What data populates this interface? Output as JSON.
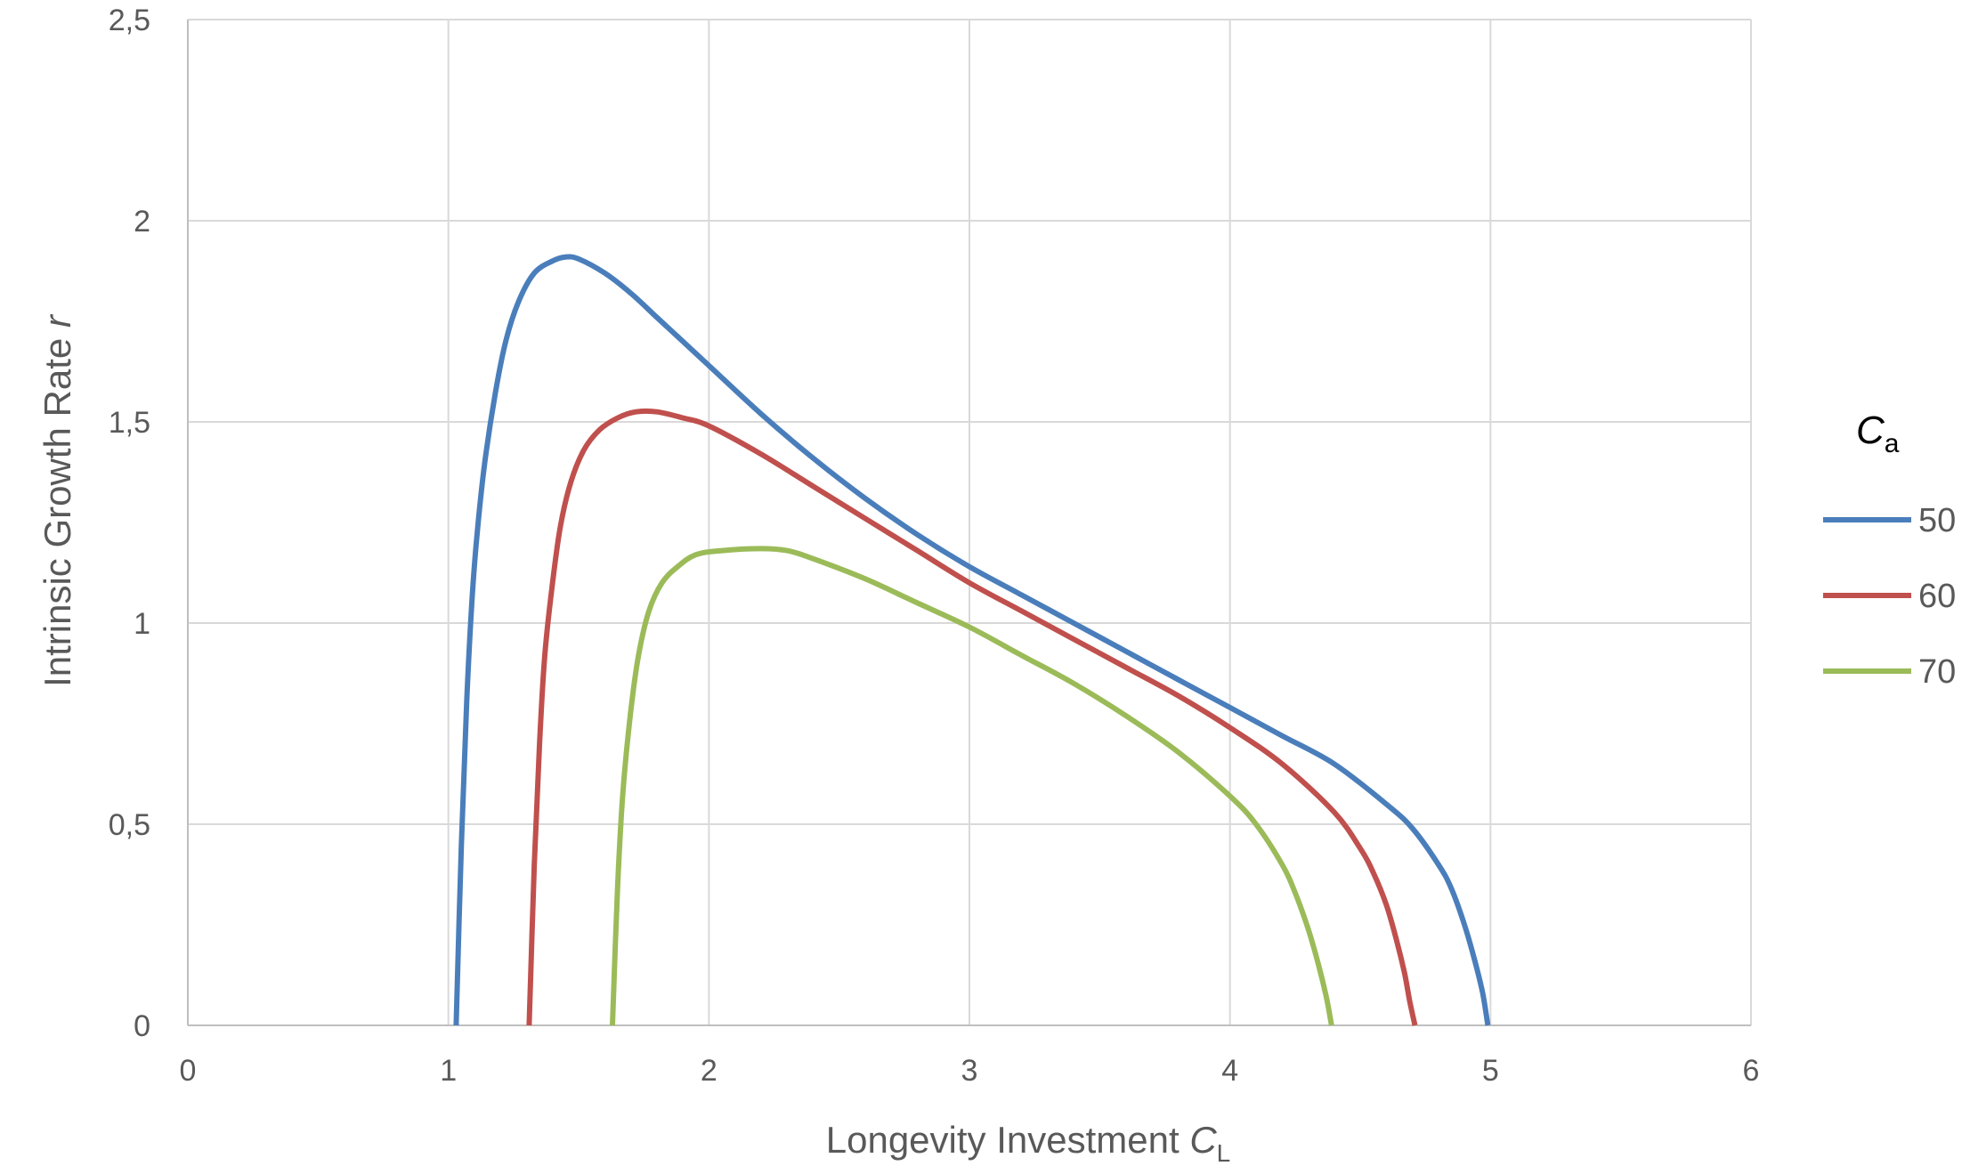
{
  "chart_data": {
    "type": "line",
    "xlabel_main": "Longevity Investment ",
    "xlabel_var": "C",
    "xlabel_sub": "L",
    "ylabel_main": "Intrinsic Growth Rate ",
    "ylabel_var": "r",
    "xlim": [
      0,
      6
    ],
    "ylim": [
      0,
      2.5
    ],
    "x_ticks": [
      0,
      1,
      2,
      3,
      4,
      5,
      6
    ],
    "y_ticks": [
      0,
      0.5,
      1,
      1.5,
      2,
      2.5
    ],
    "x_tick_labels": [
      "0",
      "1",
      "2",
      "3",
      "4",
      "5",
      "6"
    ],
    "y_tick_labels": [
      "0",
      "0,5",
      "1",
      "1,5",
      "2",
      "2,5"
    ],
    "grid": true,
    "legend_placement": "right",
    "legend_title_var": "C",
    "legend_title_sub": "a",
    "series": [
      {
        "name": "50",
        "color": "#4a7ebb",
        "x": [
          1.03,
          1.05,
          1.07,
          1.09,
          1.11,
          1.14,
          1.18,
          1.22,
          1.27,
          1.33,
          1.4,
          1.45,
          1.5,
          1.6,
          1.7,
          1.8,
          1.9,
          2.0,
          2.2,
          2.4,
          2.6,
          2.8,
          3.0,
          3.2,
          3.4,
          3.6,
          3.8,
          4.0,
          4.2,
          4.4,
          4.6,
          4.7,
          4.8,
          4.85,
          4.9,
          4.94,
          4.97,
          4.99
        ],
        "y": [
          0,
          0.45,
          0.8,
          1.05,
          1.22,
          1.4,
          1.57,
          1.7,
          1.8,
          1.87,
          1.9,
          1.91,
          1.905,
          1.87,
          1.82,
          1.76,
          1.7,
          1.64,
          1.52,
          1.41,
          1.31,
          1.22,
          1.14,
          1.07,
          1.0,
          0.93,
          0.86,
          0.79,
          0.72,
          0.65,
          0.55,
          0.49,
          0.4,
          0.34,
          0.25,
          0.16,
          0.08,
          0
        ]
      },
      {
        "name": "60",
        "color": "#c0504d",
        "x": [
          1.31,
          1.33,
          1.35,
          1.37,
          1.4,
          1.43,
          1.47,
          1.52,
          1.58,
          1.65,
          1.72,
          1.8,
          1.9,
          2.0,
          2.2,
          2.4,
          2.6,
          2.8,
          3.0,
          3.2,
          3.4,
          3.6,
          3.8,
          4.0,
          4.2,
          4.4,
          4.5,
          4.55,
          4.6,
          4.64,
          4.67,
          4.69,
          4.71
        ],
        "y": [
          0,
          0.4,
          0.7,
          0.92,
          1.1,
          1.24,
          1.35,
          1.43,
          1.48,
          1.51,
          1.525,
          1.525,
          1.51,
          1.49,
          1.42,
          1.34,
          1.26,
          1.18,
          1.1,
          1.03,
          0.96,
          0.89,
          0.82,
          0.74,
          0.65,
          0.53,
          0.44,
          0.38,
          0.3,
          0.21,
          0.13,
          0.06,
          0
        ]
      },
      {
        "name": "70",
        "color": "#9bbb59",
        "x": [
          1.63,
          1.65,
          1.67,
          1.7,
          1.73,
          1.77,
          1.82,
          1.88,
          1.95,
          2.05,
          2.2,
          2.3,
          2.4,
          2.6,
          2.8,
          3.0,
          3.2,
          3.4,
          3.6,
          3.8,
          4.0,
          4.1,
          4.2,
          4.25,
          4.3,
          4.34,
          4.37,
          4.39
        ],
        "y": [
          0,
          0.35,
          0.58,
          0.78,
          0.92,
          1.03,
          1.1,
          1.14,
          1.17,
          1.18,
          1.185,
          1.18,
          1.16,
          1.11,
          1.05,
          0.99,
          0.92,
          0.85,
          0.77,
          0.68,
          0.57,
          0.5,
          0.4,
          0.33,
          0.24,
          0.15,
          0.07,
          0
        ]
      }
    ]
  },
  "colors": {
    "grid": "#d9d9d9",
    "axis": "#bfbfbf",
    "text": "#595959"
  }
}
